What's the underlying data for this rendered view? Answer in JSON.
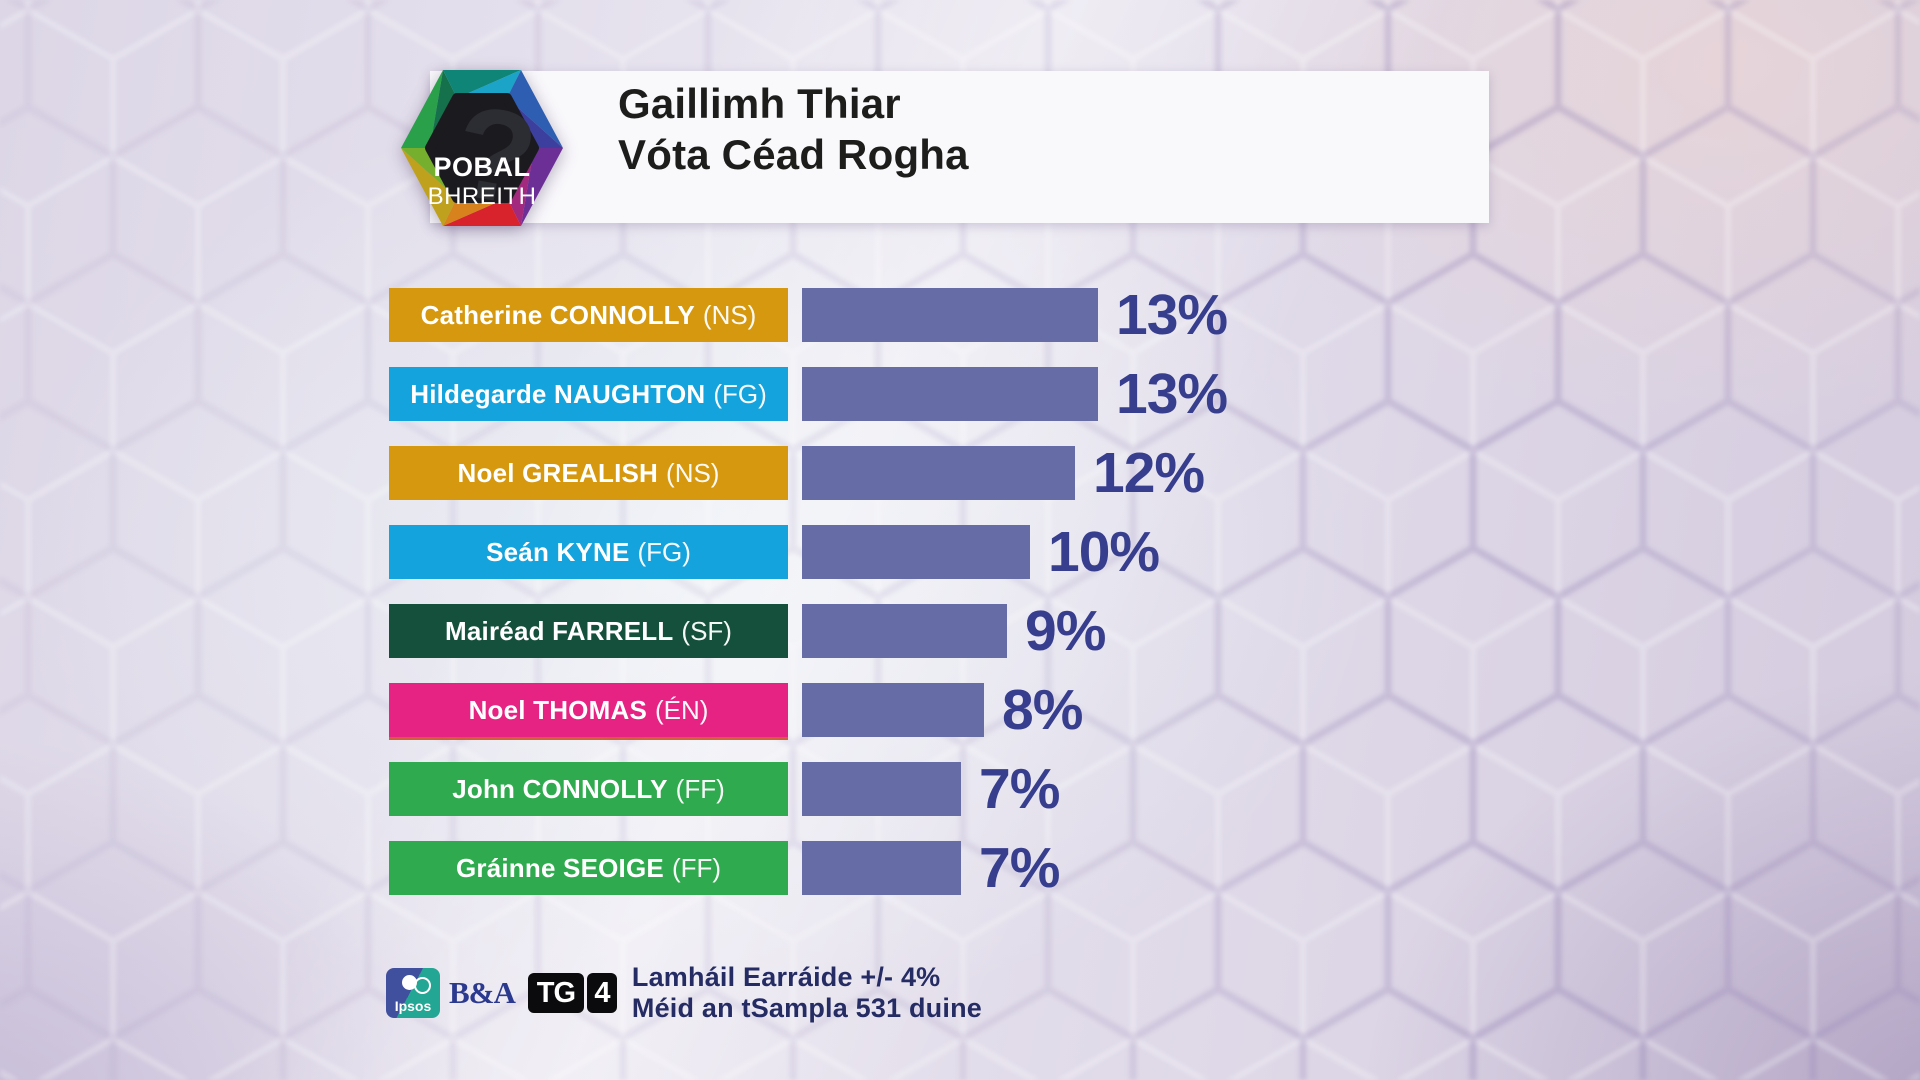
{
  "header": {
    "logo_line1": "POBAL",
    "logo_line2": "BHREITH",
    "logo_mark": "?",
    "title_line1": "Gaillimh Thiar",
    "title_line2": "Vóta Céad Rogha"
  },
  "chart_data": {
    "type": "bar",
    "orientation": "horizontal",
    "title": "Gaillimh Thiar",
    "subtitle": "Vóta Céad Rogha",
    "value_unit": "%",
    "xlim": [
      0,
      13
    ],
    "grid": false,
    "legend": false,
    "categories": [
      "Catherine CONNOLLY (NS)",
      "Hildegarde NAUGHTON (FG)",
      "Noel GREALISH (NS)",
      "Seán KYNE (FG)",
      "Mairéad FARRELL (SF)",
      "Noel THOMAS (ÉN)",
      "John CONNOLLY (FF)",
      "Gráinne SEOIGE (FF)"
    ],
    "values": [
      13,
      13,
      12,
      10,
      9,
      8,
      7,
      7
    ],
    "bars": [
      {
        "name": "Catherine CONNOLLY",
        "party": "(NS)",
        "value": 13,
        "value_label": "13%",
        "label_color": "#D6980F"
      },
      {
        "name": "Hildegarde NAUGHTON",
        "party": "(FG)",
        "value": 13,
        "value_label": "13%",
        "label_color": "#14A3DC"
      },
      {
        "name": "Noel GREALISH",
        "party": "(NS)",
        "value": 12,
        "value_label": "12%",
        "label_color": "#D6980F"
      },
      {
        "name": "Seán KYNE",
        "party": "(FG)",
        "value": 10,
        "value_label": "10%",
        "label_color": "#14A3DC"
      },
      {
        "name": "Mairéad FARRELL",
        "party": "(SF)",
        "value": 9,
        "value_label": "9%",
        "label_color": "#15503D"
      },
      {
        "name": "Noel THOMAS",
        "party": "(ÉN)",
        "value": 8,
        "value_label": "8%",
        "label_color": "#E62383",
        "accent_edge": true
      },
      {
        "name": "John CONNOLLY",
        "party": "(FF)",
        "value": 7,
        "value_label": "7%",
        "label_color": "#2FAA4E"
      },
      {
        "name": "Gráinne SEOIGE",
        "party": "(FF)",
        "value": 7,
        "value_label": "7%",
        "label_color": "#2FAA4E"
      }
    ],
    "bar_color": "#656CA6",
    "value_text_color": "#383E8E",
    "annotations": [
      "Lamháil Earráide +/- 4%",
      "Méid an tSampla 531 duine"
    ]
  },
  "footer": {
    "ipsos_label": "Ipsos",
    "ba_label": "B&A",
    "tg_label": "TG",
    "four_label": "4",
    "note_line1": "Lamháil Earráide +/- 4%",
    "note_line2": "Méid an tSampla 531 duine"
  }
}
